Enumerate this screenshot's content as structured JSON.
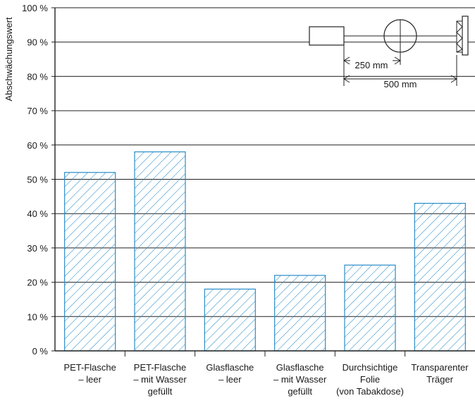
{
  "colors": {
    "bar_stroke": "#2a8cc8",
    "hatch": "#2a8cc8",
    "axis": "#222222",
    "grid": "#222222",
    "text": "#1a1a1a"
  },
  "chart_data": {
    "type": "bar",
    "ylabel": "Abschwächungswert",
    "ylim": [
      0,
      100
    ],
    "y_ticks": [
      "0 %",
      "10 %",
      "20 %",
      "30 %",
      "40 %",
      "50 %",
      "60 %",
      "70 %",
      "80 %",
      "90 %",
      "100 %"
    ],
    "grid": true,
    "bar_fill": "diagonal-hatch",
    "categories": [
      [
        "PET-Flasche",
        "– leer"
      ],
      [
        "PET-Flasche",
        "– mit Wasser",
        "gefüllt"
      ],
      [
        "Glasflasche",
        "– leer"
      ],
      [
        "Glasflasche",
        "– mit Wasser",
        "gefüllt"
      ],
      [
        "Durchsichtige",
        "Folie",
        "(von Tabakdose)"
      ],
      [
        "Transparenter",
        "Träger"
      ]
    ],
    "values": [
      52,
      58,
      18,
      22,
      25,
      43
    ],
    "inset_diagram": {
      "dim1_label": "250 mm",
      "dim2_label": "500 mm"
    }
  }
}
